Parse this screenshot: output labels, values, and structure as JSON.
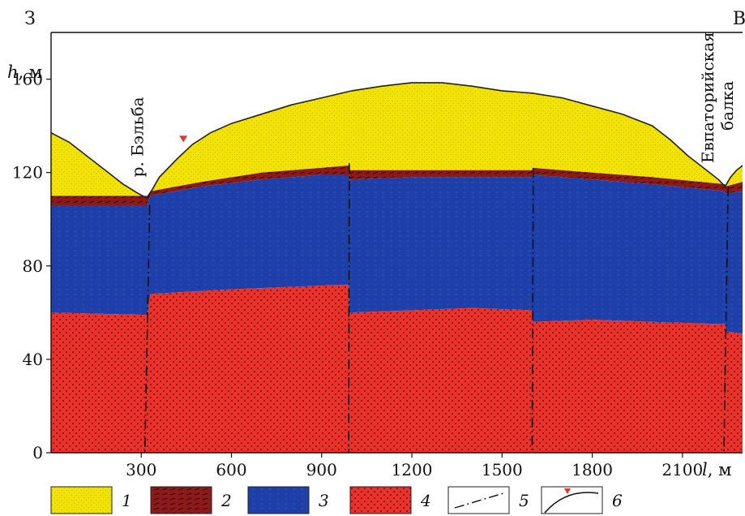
{
  "chart_data": {
    "type": "area",
    "direction_labels": {
      "west": "З",
      "east": "В"
    },
    "ylabel_var": "h",
    "ylabel_unit": ", м",
    "xlabel_var": "l",
    "xlabel_unit": ", м",
    "xlim": [
      0,
      2300
    ],
    "ylim": [
      0,
      180
    ],
    "xticks": [
      300,
      600,
      900,
      1200,
      1500,
      1800,
      2100
    ],
    "yticks": [
      0,
      40,
      80,
      120,
      160
    ],
    "grid": false,
    "features": [
      {
        "id": "river-belba",
        "text": "р. Бэльба",
        "x": 320,
        "y": 110
      },
      {
        "id": "evpatoria-balka",
        "line1": "Евпаторийская",
        "line2": "балка",
        "x": 2235,
        "y": 116
      }
    ],
    "series": [
      {
        "key": "surface",
        "legend": "1",
        "color": "#f2e300",
        "points": [
          [
            0,
            137
          ],
          [
            60,
            133
          ],
          [
            120,
            127
          ],
          [
            180,
            121
          ],
          [
            240,
            115
          ],
          [
            290,
            111
          ],
          [
            320,
            109
          ],
          [
            360,
            118
          ],
          [
            420,
            126
          ],
          [
            470,
            132
          ],
          [
            530,
            137
          ],
          [
            600,
            141
          ],
          [
            700,
            145
          ],
          [
            800,
            149
          ],
          [
            900,
            152
          ],
          [
            1000,
            155
          ],
          [
            1100,
            157
          ],
          [
            1200,
            158.5
          ],
          [
            1300,
            158.5
          ],
          [
            1400,
            157
          ],
          [
            1500,
            155
          ],
          [
            1600,
            154
          ],
          [
            1700,
            152
          ],
          [
            1800,
            148.5
          ],
          [
            1900,
            145
          ],
          [
            2000,
            140
          ],
          [
            2060,
            134
          ],
          [
            2120,
            127
          ],
          [
            2180,
            121
          ],
          [
            2220,
            117
          ],
          [
            2242,
            114
          ],
          [
            2260,
            118
          ],
          [
            2280,
            121
          ],
          [
            2300,
            123
          ]
        ]
      },
      {
        "key": "bottom-layer-2",
        "legend": "2",
        "color": "#8c1a1a",
        "points": [
          [
            0,
            110
          ],
          [
            320,
            110
          ],
          [
            330,
            112
          ],
          [
            500,
            116
          ],
          [
            700,
            120
          ],
          [
            900,
            122
          ],
          [
            990,
            123
          ],
          [
            991,
            121
          ],
          [
            1200,
            121
          ],
          [
            1400,
            121
          ],
          [
            1600,
            121
          ],
          [
            1601,
            122
          ],
          [
            1800,
            120
          ],
          [
            2000,
            118
          ],
          [
            2242,
            115
          ],
          [
            2243,
            114
          ],
          [
            2300,
            116
          ]
        ]
      },
      {
        "key": "bottom-layer-3",
        "legend": "3",
        "color": "#1f3fa8",
        "points": [
          [
            0,
            106
          ],
          [
            320,
            106
          ],
          [
            330,
            110
          ],
          [
            500,
            114
          ],
          [
            700,
            117
          ],
          [
            900,
            119
          ],
          [
            990,
            119
          ],
          [
            991,
            117
          ],
          [
            1200,
            118
          ],
          [
            1400,
            118
          ],
          [
            1600,
            118
          ],
          [
            1601,
            119
          ],
          [
            1800,
            117
          ],
          [
            2000,
            115
          ],
          [
            2242,
            112
          ],
          [
            2243,
            111
          ],
          [
            2300,
            112
          ]
        ]
      },
      {
        "key": "bottom-layer-4",
        "legend": "4",
        "color": "#e8322b",
        "points": [
          [
            0,
            104
          ],
          [
            320,
            104
          ],
          [
            330,
            104
          ],
          [
            990,
            104
          ],
          [
            991,
            104
          ],
          [
            1600,
            104
          ],
          [
            1601,
            104
          ],
          [
            2243,
            104
          ],
          [
            2300,
            104
          ]
        ]
      },
      {
        "key": "top-of-layer-4",
        "legend": "",
        "color": "#e8322b",
        "points": [
          [
            0,
            60
          ],
          [
            320,
            59
          ],
          [
            330,
            68
          ],
          [
            600,
            70
          ],
          [
            990,
            72
          ],
          [
            991,
            60
          ],
          [
            1200,
            61
          ],
          [
            1400,
            62
          ],
          [
            1600,
            61
          ],
          [
            1601,
            56
          ],
          [
            1800,
            57
          ],
          [
            2000,
            56
          ],
          [
            2242,
            55
          ],
          [
            2243,
            52
          ],
          [
            2300,
            51
          ]
        ]
      },
      {
        "key": "base",
        "legend": "",
        "color": "#e8322b",
        "points": [
          [
            0,
            0
          ],
          [
            2300,
            0
          ]
        ]
      }
    ],
    "faults": [
      {
        "x": [
          328,
          312
        ],
        "y": [
          106,
          0
        ]
      },
      {
        "x": [
          992,
          990
        ],
        "y": [
          124,
          0
        ]
      },
      {
        "x": [
          1604,
          1600
        ],
        "y": [
          122,
          0
        ]
      },
      {
        "x": [
          2252,
          2238
        ],
        "y": [
          114,
          0
        ]
      }
    ],
    "marker": {
      "x": 440,
      "y": 133,
      "color": "#e8322b"
    },
    "legend": [
      {
        "id": "1",
        "number": "1",
        "color": "#f2e300"
      },
      {
        "id": "2",
        "number": "2",
        "color": "#8c1a1a"
      },
      {
        "id": "3",
        "number": "3",
        "color": "#1f3fa8"
      },
      {
        "id": "4",
        "number": "4",
        "color": "#e8322b"
      },
      {
        "id": "5",
        "number": "5"
      },
      {
        "id": "6",
        "number": "6"
      }
    ]
  }
}
